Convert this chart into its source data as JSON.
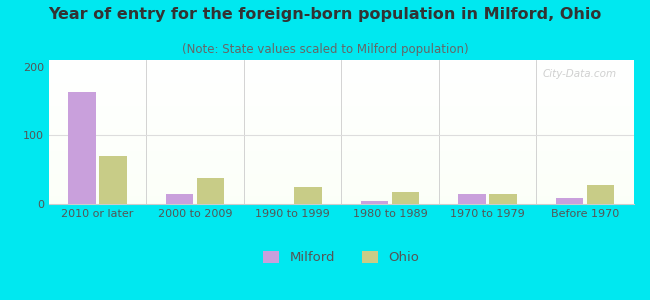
{
  "title": "Year of entry for the foreign-born population in Milford, Ohio",
  "subtitle": "(Note: State values scaled to Milford population)",
  "categories": [
    "2010 or later",
    "2000 to 2009",
    "1990 to 1999",
    "1980 to 1989",
    "1970 to 1979",
    "Before 1970"
  ],
  "milford_values": [
    163,
    15,
    0,
    4,
    14,
    9
  ],
  "ohio_values": [
    70,
    38,
    25,
    18,
    15,
    27
  ],
  "milford_color": "#c9a0dc",
  "ohio_color": "#c8cc87",
  "background_outer": "#00e8f0",
  "ylim": [
    0,
    210
  ],
  "yticks": [
    0,
    100,
    200
  ],
  "bar_width": 0.28,
  "title_fontsize": 11.5,
  "subtitle_fontsize": 8.5,
  "tick_fontsize": 8,
  "legend_fontsize": 9.5
}
